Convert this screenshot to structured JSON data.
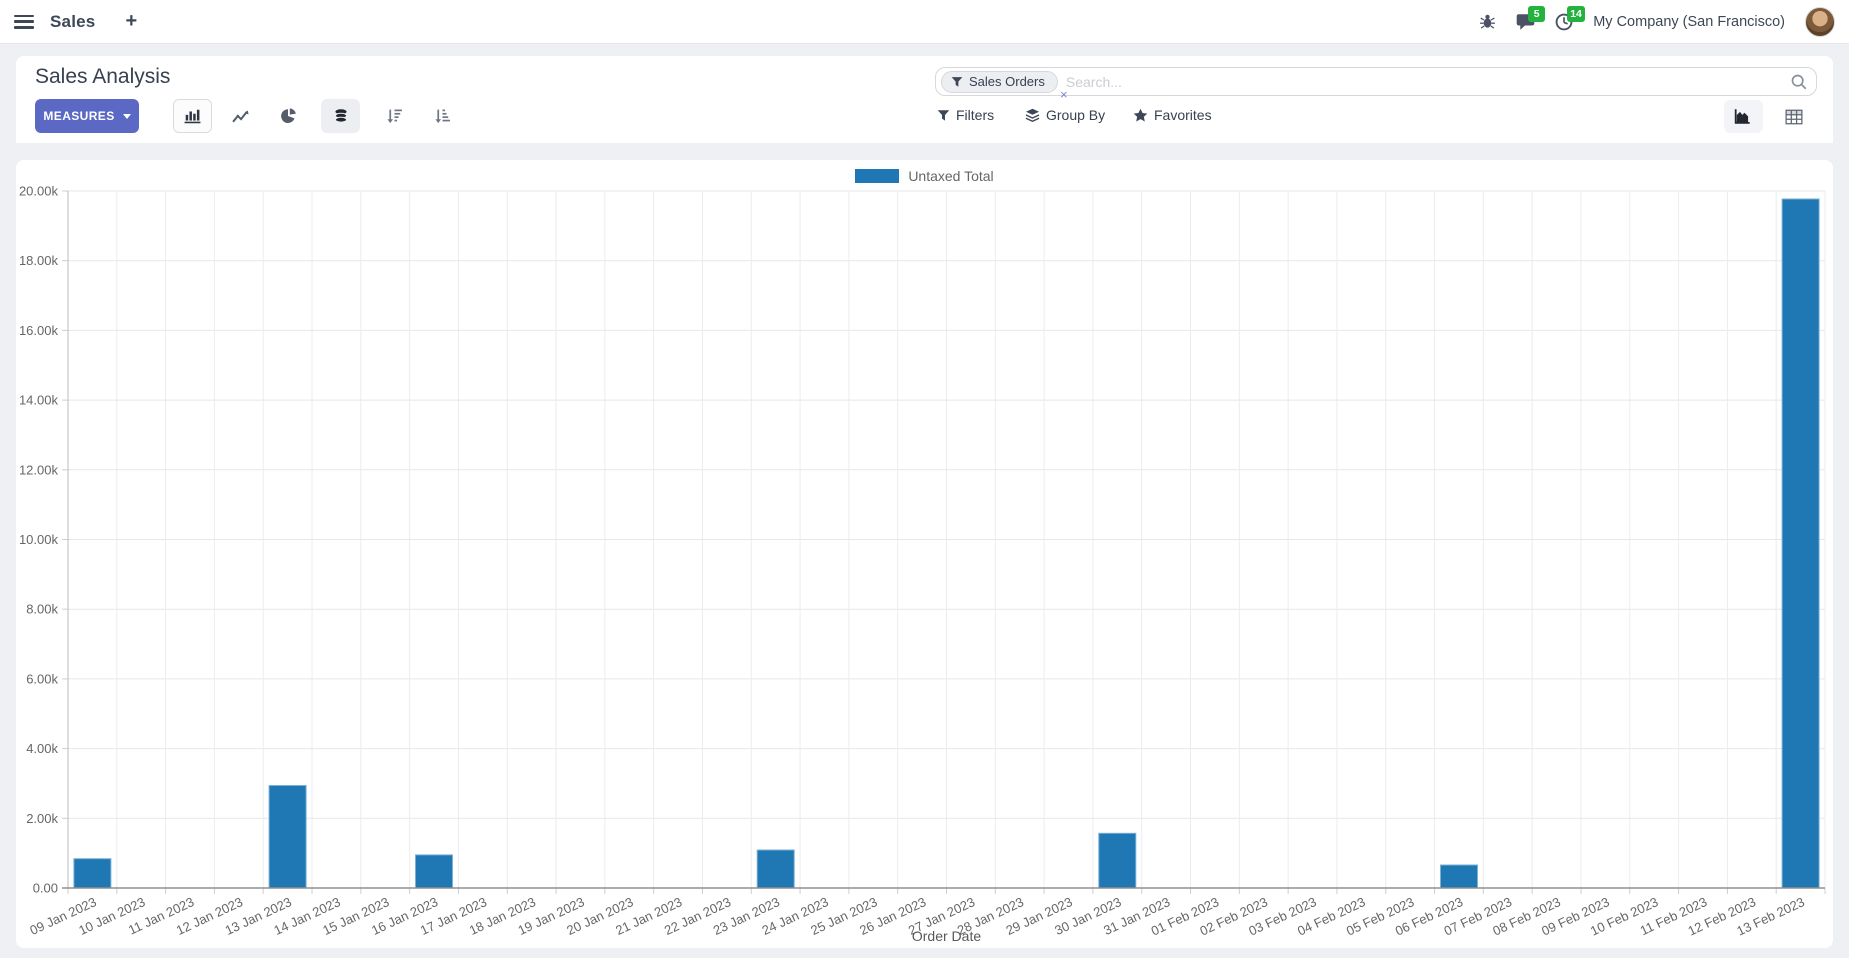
{
  "navbar": {
    "brand": "Sales",
    "new_tab": "+",
    "messages_badge": "5",
    "activities_badge": "14",
    "company": "My Company (San Francisco)"
  },
  "control_panel": {
    "title": "Sales Analysis",
    "measures_label": "MEASURES",
    "search": {
      "facet": "Sales Orders",
      "remove": "×",
      "placeholder": "Search..."
    },
    "filters_label": "Filters",
    "group_by_label": "Group By",
    "favorites_label": "Favorites"
  },
  "icons": {
    "navbar": [
      "hamburger",
      "bug",
      "messages-bubble",
      "activity-clock",
      "avatar"
    ],
    "chart_toolbar": [
      "bar-chart",
      "line-chart",
      "pie-chart",
      "stacked",
      "sort-descending",
      "sort-ascending"
    ],
    "search": [
      "funnel",
      "magnifier"
    ],
    "filter_row": [
      "funnel",
      "layers",
      "star"
    ],
    "view_switcher": [
      "area-chart-view",
      "pivot-view"
    ]
  },
  "colors": {
    "primary_button": "#5b68c4",
    "badge_green": "#23b23e",
    "bar_blue": "#1f77b4"
  },
  "chart_data": {
    "type": "bar",
    "title": "",
    "xlabel": "Order Date",
    "ylabel": "",
    "ylim": [
      0,
      20000
    ],
    "y_tick_step": 2000,
    "y_tick_labels": [
      "0.00",
      "2.00k",
      "4.00k",
      "6.00k",
      "8.00k",
      "10.00k",
      "12.00k",
      "14.00k",
      "16.00k",
      "18.00k",
      "20.00k"
    ],
    "grid": true,
    "legend_position": "top",
    "categories": [
      "09 Jan 2023",
      "10 Jan 2023",
      "11 Jan 2023",
      "12 Jan 2023",
      "13 Jan 2023",
      "14 Jan 2023",
      "15 Jan 2023",
      "16 Jan 2023",
      "17 Jan 2023",
      "18 Jan 2023",
      "19 Jan 2023",
      "20 Jan 2023",
      "21 Jan 2023",
      "22 Jan 2023",
      "23 Jan 2023",
      "24 Jan 2023",
      "25 Jan 2023",
      "26 Jan 2023",
      "27 Jan 2023",
      "28 Jan 2023",
      "29 Jan 2023",
      "30 Jan 2023",
      "31 Jan 2023",
      "01 Feb 2023",
      "02 Feb 2023",
      "03 Feb 2023",
      "04 Feb 2023",
      "05 Feb 2023",
      "06 Feb 2023",
      "07 Feb 2023",
      "08 Feb 2023",
      "09 Feb 2023",
      "10 Feb 2023",
      "11 Feb 2023",
      "12 Feb 2023",
      "13 Feb 2023"
    ],
    "series": [
      {
        "name": "Untaxed Total",
        "color": "#1f77b4",
        "values": [
          840,
          0,
          0,
          0,
          2940,
          0,
          0,
          950,
          0,
          0,
          0,
          0,
          0,
          0,
          1090,
          0,
          0,
          0,
          0,
          0,
          0,
          1570,
          0,
          0,
          0,
          0,
          0,
          0,
          660,
          0,
          0,
          0,
          0,
          0,
          0,
          19770
        ]
      }
    ]
  }
}
